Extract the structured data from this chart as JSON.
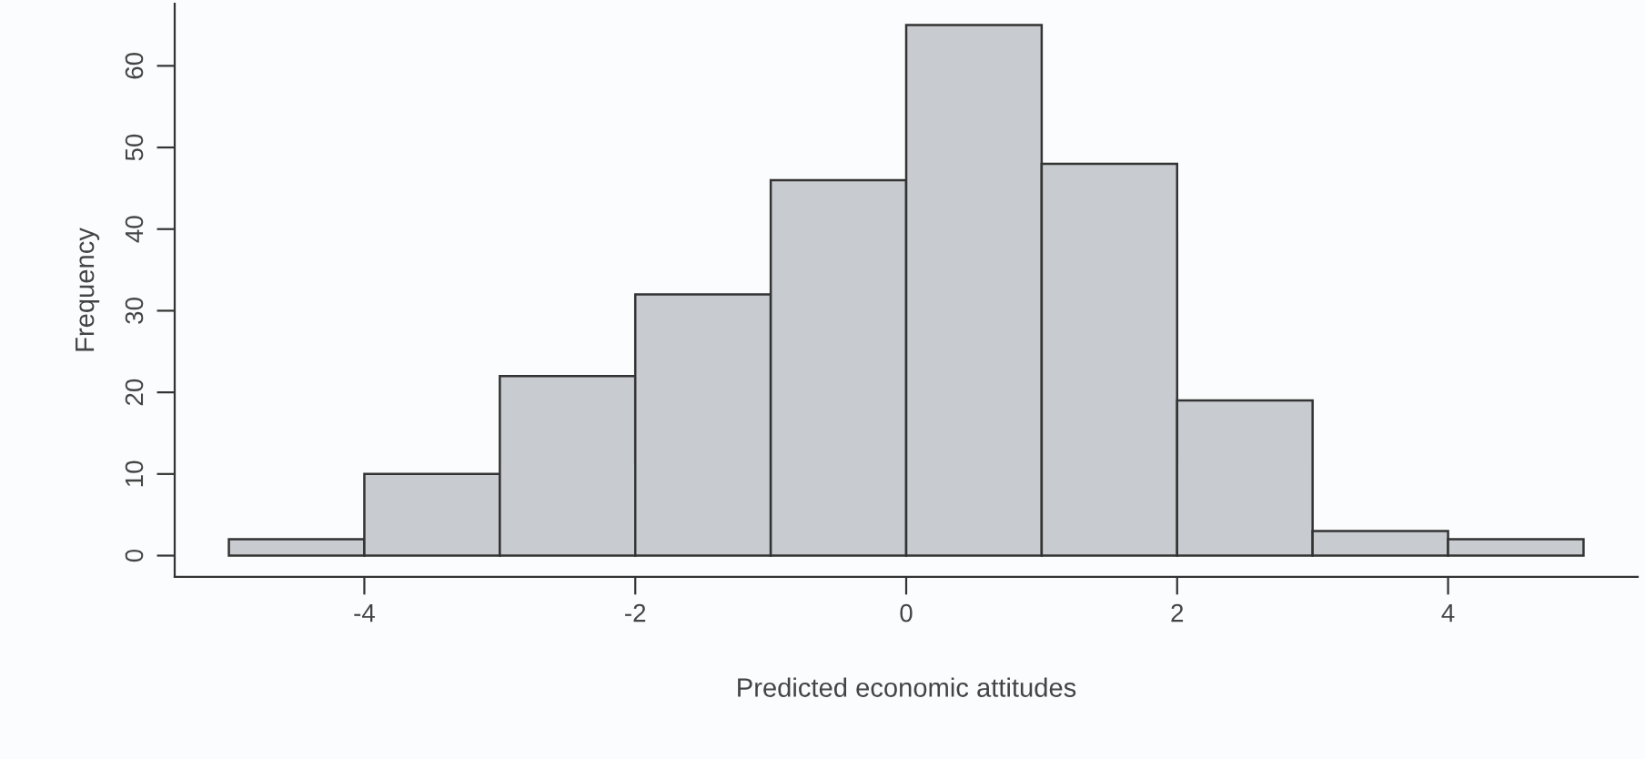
{
  "chart_data": {
    "type": "histogram",
    "xlabel": "Predicted economic attitudes",
    "ylabel": "Frequency",
    "bins": [
      -5,
      -4,
      -3,
      -2,
      -1,
      0,
      1,
      2,
      3,
      4,
      5
    ],
    "values": [
      2,
      10,
      22,
      32,
      46,
      65,
      48,
      19,
      3,
      2
    ],
    "color": "#c8cbd0",
    "xlim": [
      -5.4,
      5.4
    ],
    "ylim": [
      -2.6,
      67.6
    ],
    "xticks": [
      -4,
      -2,
      0,
      2,
      4
    ],
    "yticks": [
      0,
      10,
      20,
      30,
      40,
      50,
      60
    ],
    "grid": false
  }
}
